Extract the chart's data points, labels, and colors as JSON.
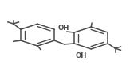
{
  "bg_color": "#ffffff",
  "line_color": "#4a4a4a",
  "text_color": "#4a4a4a",
  "line_width": 1.1,
  "fig_width": 1.68,
  "fig_height": 0.96,
  "dpi": 100,
  "r1cx": 0.28,
  "r1cy": 0.54,
  "r1r": 0.145,
  "ao1": 30,
  "r2cx": 0.68,
  "r2cy": 0.5,
  "r2r": 0.145,
  "ao2": 90,
  "db_inner": 0.75
}
